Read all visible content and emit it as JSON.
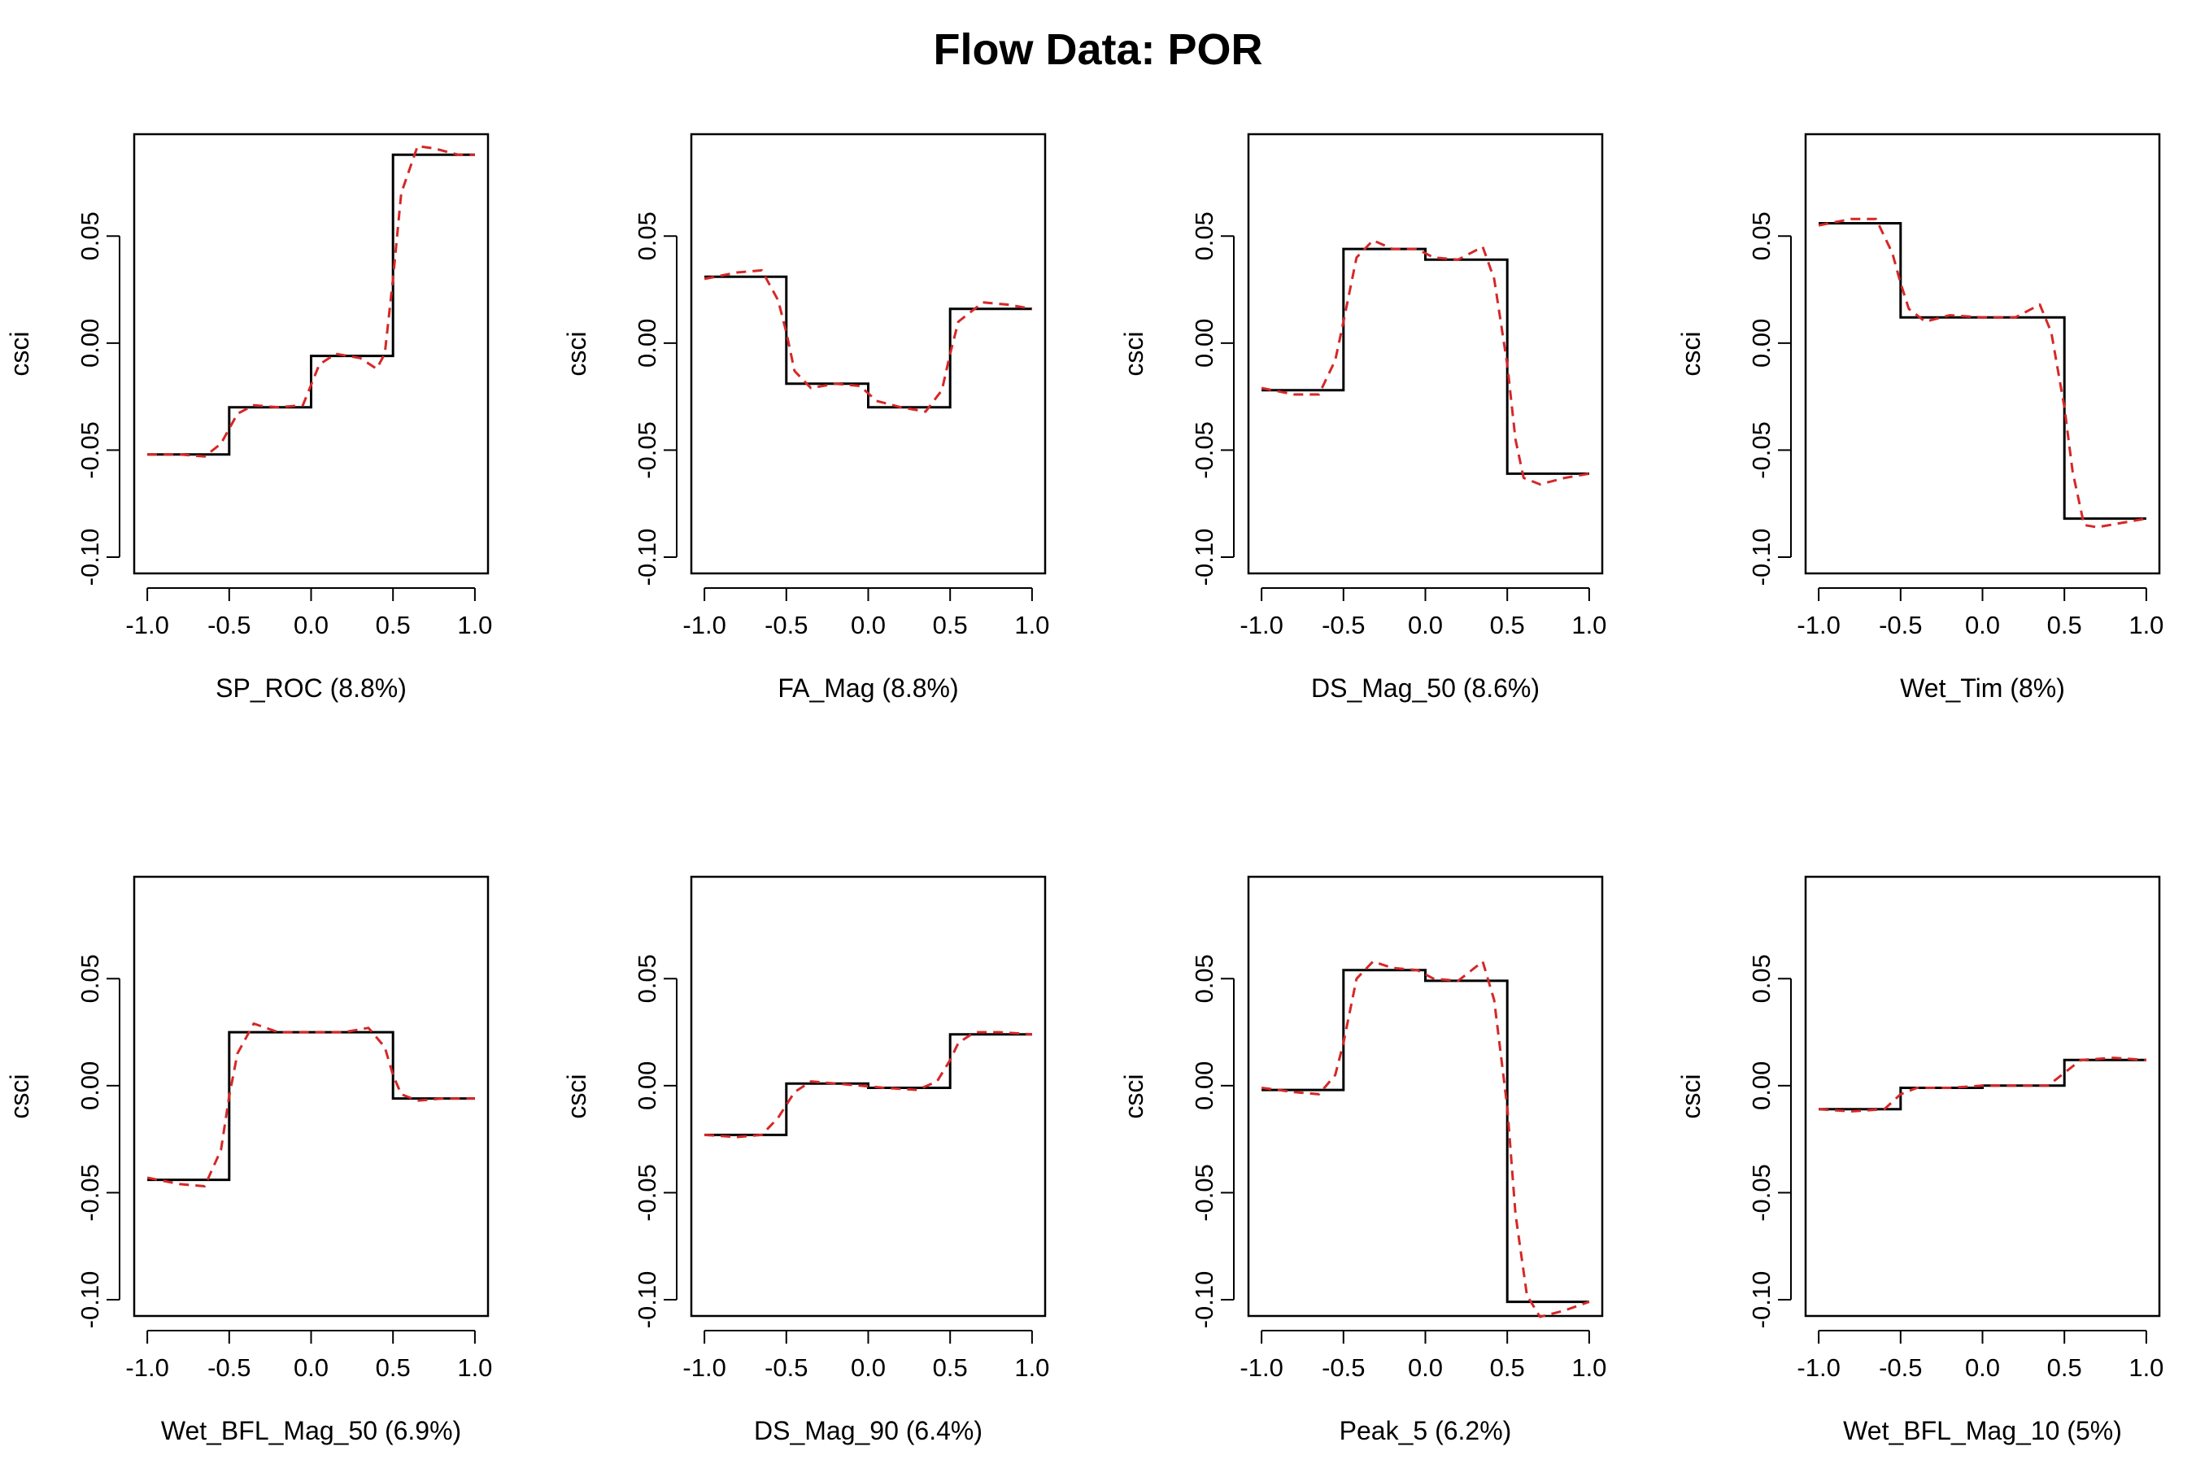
{
  "title": "Flow Data: POR",
  "colors": {
    "step_line": "#000000",
    "smooth_line": "#d62728"
  },
  "chart_data": [
    {
      "type": "line",
      "xlabel": "SP_ROC  (8.8%)",
      "ylabel": "csci",
      "xlim": [
        -1.0,
        1.0
      ],
      "ylim": [
        -0.1,
        0.09
      ],
      "xticks": [
        "-1.0",
        "-0.5",
        "0.0",
        "0.5",
        "1.0"
      ],
      "yticks": [
        "-0.10",
        "-0.05",
        "0.00",
        "0.05"
      ],
      "series": [
        {
          "style": "step",
          "x": [
            -1.0,
            -0.5,
            -0.5,
            0.0,
            0.0,
            0.5,
            0.5,
            1.0
          ],
          "y": [
            -0.052,
            -0.052,
            -0.03,
            -0.03,
            -0.006,
            -0.006,
            0.088,
            0.088
          ]
        },
        {
          "style": "smooth",
          "x": [
            -1.0,
            -0.8,
            -0.65,
            -0.55,
            -0.45,
            -0.35,
            -0.2,
            -0.05,
            0.05,
            0.15,
            0.3,
            0.4,
            0.45,
            0.5,
            0.55,
            0.65,
            0.75,
            0.9,
            1.0
          ],
          "y": [
            -0.052,
            -0.052,
            -0.053,
            -0.047,
            -0.033,
            -0.029,
            -0.03,
            -0.029,
            -0.01,
            -0.005,
            -0.007,
            -0.012,
            -0.005,
            0.03,
            0.07,
            0.092,
            0.091,
            0.088,
            0.088
          ]
        }
      ]
    },
    {
      "type": "line",
      "xlabel": "FA_Mag  (8.8%)",
      "ylabel": "csci",
      "xlim": [
        -1.0,
        1.0
      ],
      "ylim": [
        -0.1,
        0.09
      ],
      "xticks": [
        "-1.0",
        "-0.5",
        "0.0",
        "0.5",
        "1.0"
      ],
      "yticks": [
        "-0.10",
        "-0.05",
        "0.00",
        "0.05"
      ],
      "series": [
        {
          "style": "step",
          "x": [
            -1.0,
            -0.5,
            -0.5,
            0.0,
            0.0,
            0.5,
            0.5,
            1.0
          ],
          "y": [
            0.031,
            0.031,
            -0.019,
            -0.019,
            -0.03,
            -0.03,
            0.016,
            0.016
          ]
        },
        {
          "style": "smooth",
          "x": [
            -1.0,
            -0.8,
            -0.65,
            -0.55,
            -0.5,
            -0.45,
            -0.35,
            -0.2,
            -0.05,
            0.05,
            0.2,
            0.35,
            0.45,
            0.5,
            0.55,
            0.7,
            0.85,
            1.0
          ],
          "y": [
            0.03,
            0.033,
            0.034,
            0.02,
            0.005,
            -0.013,
            -0.021,
            -0.019,
            -0.02,
            -0.027,
            -0.03,
            -0.032,
            -0.022,
            -0.005,
            0.01,
            0.019,
            0.018,
            0.016
          ]
        }
      ]
    },
    {
      "type": "line",
      "xlabel": "DS_Mag_50  (8.6%)",
      "ylabel": "csci",
      "xlim": [
        -1.0,
        1.0
      ],
      "ylim": [
        -0.1,
        0.09
      ],
      "xticks": [
        "-1.0",
        "-0.5",
        "0.0",
        "0.5",
        "1.0"
      ],
      "yticks": [
        "-0.10",
        "-0.05",
        "0.00",
        "0.05"
      ],
      "series": [
        {
          "style": "step",
          "x": [
            -1.0,
            -0.5,
            -0.5,
            0.0,
            0.0,
            0.5,
            0.5,
            1.0
          ],
          "y": [
            -0.022,
            -0.022,
            0.044,
            0.044,
            0.039,
            0.039,
            -0.061,
            -0.061
          ]
        },
        {
          "style": "smooth",
          "x": [
            -1.0,
            -0.8,
            -0.65,
            -0.55,
            -0.5,
            -0.42,
            -0.32,
            -0.2,
            -0.05,
            0.05,
            0.2,
            0.35,
            0.42,
            0.5,
            0.55,
            0.6,
            0.7,
            0.85,
            1.0
          ],
          "y": [
            -0.021,
            -0.024,
            -0.024,
            -0.008,
            0.01,
            0.04,
            0.048,
            0.044,
            0.044,
            0.04,
            0.039,
            0.045,
            0.03,
            -0.01,
            -0.045,
            -0.063,
            -0.066,
            -0.063,
            -0.061
          ]
        }
      ]
    },
    {
      "type": "line",
      "xlabel": "Wet_Tim  (8%)",
      "ylabel": "csci",
      "xlim": [
        -1.0,
        1.0
      ],
      "ylim": [
        -0.1,
        0.09
      ],
      "xticks": [
        "-1.0",
        "-0.5",
        "0.0",
        "0.5",
        "1.0"
      ],
      "yticks": [
        "-0.10",
        "-0.05",
        "0.00",
        "0.05"
      ],
      "series": [
        {
          "style": "step",
          "x": [
            -1.0,
            -0.5,
            -0.5,
            0.5,
            0.5,
            1.0
          ],
          "y": [
            0.056,
            0.056,
            0.012,
            0.012,
            -0.082,
            -0.082
          ]
        },
        {
          "style": "smooth",
          "x": [
            -1.0,
            -0.8,
            -0.65,
            -0.55,
            -0.5,
            -0.45,
            -0.35,
            -0.2,
            0.0,
            0.2,
            0.35,
            0.42,
            0.5,
            0.55,
            0.62,
            0.7,
            0.85,
            1.0
          ],
          "y": [
            0.055,
            0.058,
            0.058,
            0.042,
            0.028,
            0.016,
            0.01,
            0.013,
            0.012,
            0.012,
            0.018,
            0.005,
            -0.03,
            -0.06,
            -0.085,
            -0.086,
            -0.084,
            -0.082
          ]
        }
      ]
    },
    {
      "type": "line",
      "xlabel": "Wet_BFL_Mag_50  (6.9%)",
      "ylabel": "csci",
      "xlim": [
        -1.0,
        1.0
      ],
      "ylim": [
        -0.1,
        0.09
      ],
      "xticks": [
        "-1.0",
        "-0.5",
        "0.0",
        "0.5",
        "1.0"
      ],
      "yticks": [
        "-0.10",
        "-0.05",
        "0.00",
        "0.05"
      ],
      "series": [
        {
          "style": "step",
          "x": [
            -1.0,
            -0.5,
            -0.5,
            0.5,
            0.5,
            1.0
          ],
          "y": [
            -0.044,
            -0.044,
            0.025,
            0.025,
            -0.006,
            -0.006
          ]
        },
        {
          "style": "smooth",
          "x": [
            -1.0,
            -0.8,
            -0.65,
            -0.55,
            -0.5,
            -0.45,
            -0.35,
            -0.2,
            0.0,
            0.2,
            0.35,
            0.45,
            0.5,
            0.55,
            0.65,
            0.8,
            1.0
          ],
          "y": [
            -0.043,
            -0.046,
            -0.047,
            -0.03,
            -0.005,
            0.015,
            0.029,
            0.025,
            0.025,
            0.025,
            0.027,
            0.018,
            0.005,
            -0.004,
            -0.007,
            -0.006,
            -0.006
          ]
        }
      ]
    },
    {
      "type": "line",
      "xlabel": "DS_Mag_90  (6.4%)",
      "ylabel": "csci",
      "xlim": [
        -1.0,
        1.0
      ],
      "ylim": [
        -0.1,
        0.09
      ],
      "xticks": [
        "-1.0",
        "-0.5",
        "0.0",
        "0.5",
        "1.0"
      ],
      "yticks": [
        "-0.10",
        "-0.05",
        "0.00",
        "0.05"
      ],
      "series": [
        {
          "style": "step",
          "x": [
            -1.0,
            -0.5,
            -0.5,
            0.0,
            0.0,
            0.5,
            0.5,
            1.0
          ],
          "y": [
            -0.023,
            -0.023,
            0.001,
            0.001,
            -0.001,
            -0.001,
            0.024,
            0.024
          ]
        },
        {
          "style": "smooth",
          "x": [
            -1.0,
            -0.8,
            -0.65,
            -0.55,
            -0.45,
            -0.35,
            -0.2,
            -0.05,
            0.1,
            0.3,
            0.42,
            0.5,
            0.55,
            0.65,
            0.8,
            1.0
          ],
          "y": [
            -0.023,
            -0.024,
            -0.023,
            -0.015,
            -0.003,
            0.002,
            0.001,
            0.0,
            -0.001,
            -0.002,
            0.002,
            0.012,
            0.02,
            0.025,
            0.025,
            0.024
          ]
        }
      ]
    },
    {
      "type": "line",
      "xlabel": "Peak_5  (6.2%)",
      "ylabel": "csci",
      "xlim": [
        -1.0,
        1.0
      ],
      "ylim": [
        -0.1,
        0.09
      ],
      "xticks": [
        "-1.0",
        "-0.5",
        "0.0",
        "0.5",
        "1.0"
      ],
      "yticks": [
        "-0.10",
        "-0.05",
        "0.00",
        "0.05"
      ],
      "series": [
        {
          "style": "step",
          "x": [
            -1.0,
            -0.5,
            -0.5,
            0.0,
            0.0,
            0.5,
            0.5,
            1.0
          ],
          "y": [
            -0.002,
            -0.002,
            0.054,
            0.054,
            0.049,
            0.049,
            -0.101,
            -0.101
          ]
        },
        {
          "style": "smooth",
          "x": [
            -1.0,
            -0.8,
            -0.65,
            -0.55,
            -0.5,
            -0.42,
            -0.32,
            -0.2,
            -0.05,
            0.05,
            0.2,
            0.35,
            0.42,
            0.5,
            0.55,
            0.62,
            0.7,
            0.85,
            1.0
          ],
          "y": [
            -0.001,
            -0.003,
            -0.004,
            0.005,
            0.02,
            0.05,
            0.058,
            0.055,
            0.054,
            0.05,
            0.049,
            0.058,
            0.04,
            -0.01,
            -0.06,
            -0.098,
            -0.108,
            -0.105,
            -0.101
          ]
        }
      ]
    },
    {
      "type": "line",
      "xlabel": "Wet_BFL_Mag_10  (5%)",
      "ylabel": "csci",
      "xlim": [
        -1.0,
        1.0
      ],
      "ylim": [
        -0.1,
        0.09
      ],
      "xticks": [
        "-1.0",
        "-0.5",
        "0.0",
        "0.5",
        "1.0"
      ],
      "yticks": [
        "-0.10",
        "-0.05",
        "0.00",
        "0.05"
      ],
      "series": [
        {
          "style": "step",
          "x": [
            -1.0,
            -0.5,
            -0.5,
            0.0,
            0.0,
            0.5,
            0.5,
            1.0
          ],
          "y": [
            -0.011,
            -0.011,
            -0.001,
            -0.001,
            0.0,
            0.0,
            0.012,
            0.012
          ]
        },
        {
          "style": "smooth",
          "x": [
            -1.0,
            -0.8,
            -0.6,
            -0.5,
            -0.4,
            -0.2,
            0.0,
            0.2,
            0.4,
            0.5,
            0.6,
            0.8,
            1.0
          ],
          "y": [
            -0.011,
            -0.012,
            -0.011,
            -0.004,
            -0.001,
            -0.001,
            0.0,
            0.0,
            0.0,
            0.006,
            0.012,
            0.013,
            0.012
          ]
        }
      ]
    }
  ]
}
